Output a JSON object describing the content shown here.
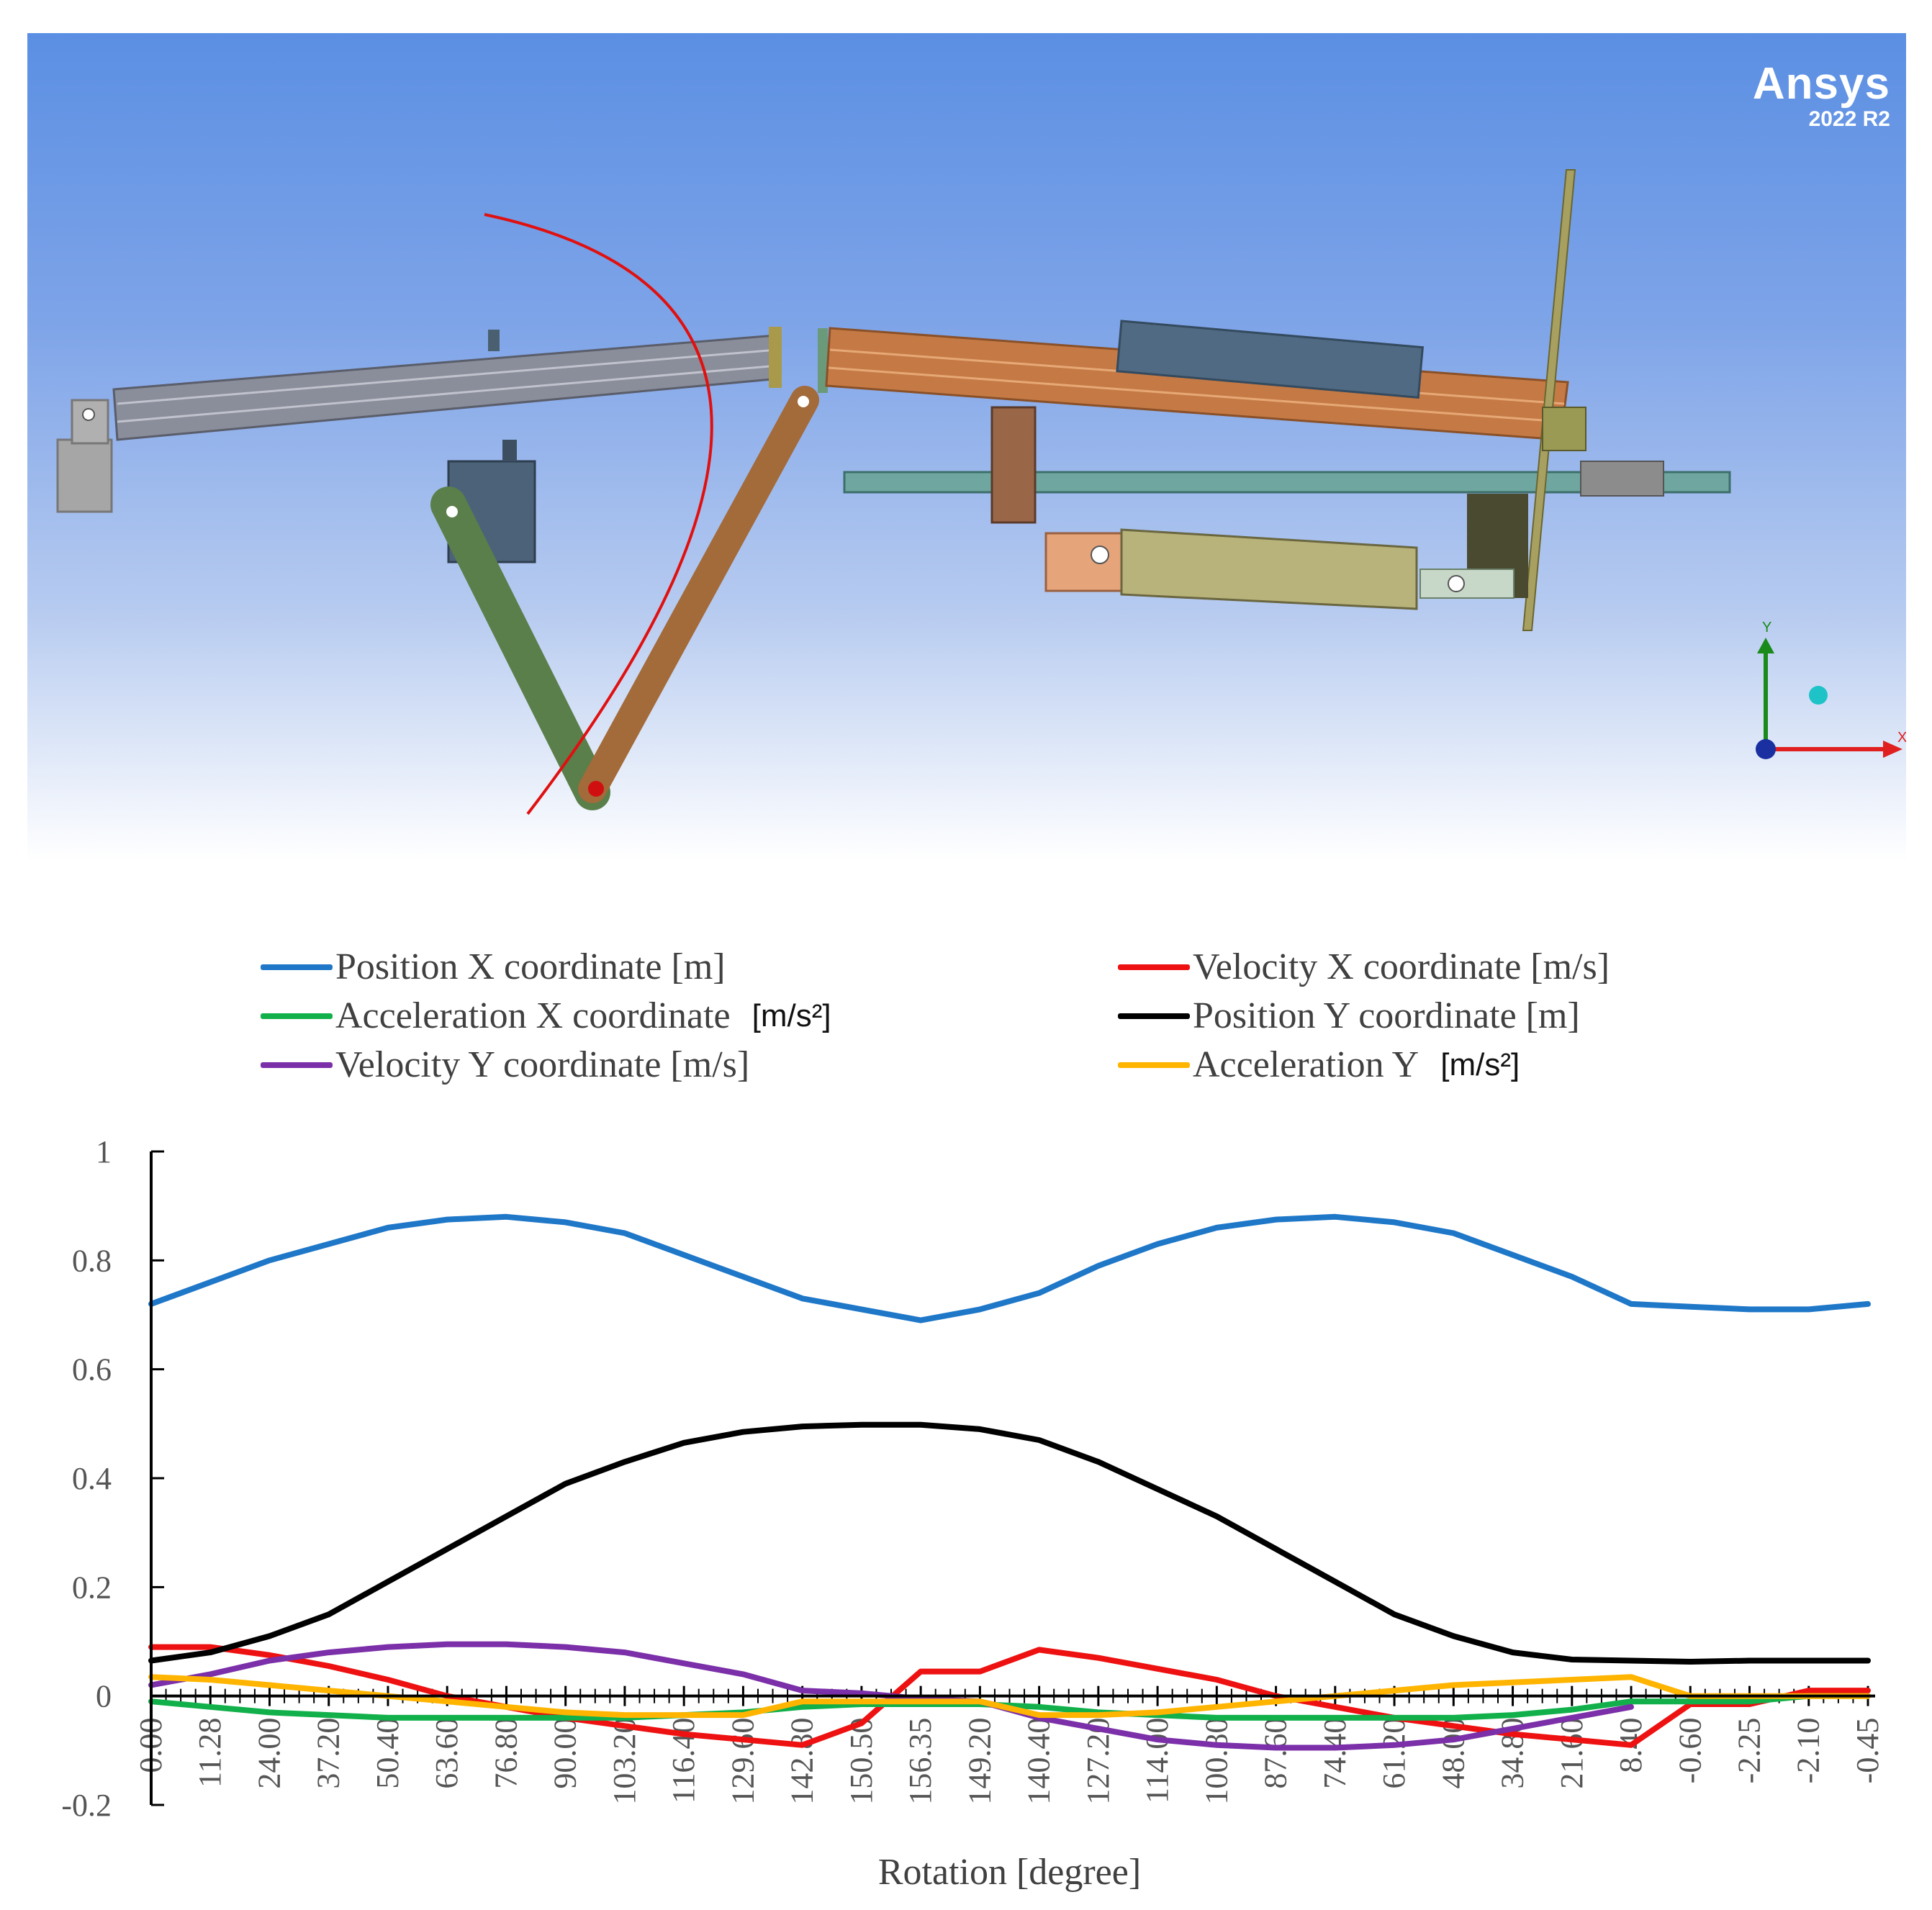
{
  "brand": {
    "name": "Ansys",
    "version": "2022 R2"
  },
  "triad": {
    "x_label": "X",
    "y_label": "Y"
  },
  "legend": [
    {
      "label": "Position X coordinate [m]",
      "unit": "",
      "color": "#1f77c8"
    },
    {
      "label": "Velocity X coordinate [m/s]",
      "unit": "",
      "color": "#ee1111"
    },
    {
      "label": "Acceleration X coordinate",
      "unit": "[m/s²]",
      "color": "#11b04a"
    },
    {
      "label": "Position Y coordinate [m]",
      "unit": "",
      "color": "#000000"
    },
    {
      "label": "Velocity Y coordinate [m/s]",
      "unit": "",
      "color": "#7b2fa8"
    },
    {
      "label": "Acceleration Y",
      "unit": "[m/s²]",
      "color": "#ffb400"
    }
  ],
  "chart_data": {
    "type": "line",
    "xlabel": "Rotation [degree]",
    "ylabel": "",
    "ylim": [
      -0.2,
      1
    ],
    "yticks": [
      "1",
      "0.8",
      "0.6",
      "0.4",
      "0.2",
      "0",
      "-0.2"
    ],
    "categories": [
      "0.00",
      "11.28",
      "24.00",
      "37.20",
      "50.40",
      "63.60",
      "76.80",
      "90.00",
      "103.20",
      "116.40",
      "129.60",
      "142.80",
      "150.50",
      "156.35",
      "149.20",
      "140.40",
      "127.20",
      "114.00",
      "100.80",
      "87.60",
      "74.40",
      "61.20",
      "48.00",
      "34.80",
      "21.60",
      "8.40",
      "-0.60",
      "-2.25",
      "-2.10",
      "-0.45"
    ],
    "series": [
      {
        "name": "Position X coordinate [m]",
        "color": "#1f77c8",
        "values": [
          0.72,
          0.76,
          0.8,
          0.83,
          0.86,
          0.875,
          0.88,
          0.87,
          0.85,
          0.81,
          0.77,
          0.73,
          0.71,
          0.69,
          0.71,
          0.74,
          0.79,
          0.83,
          0.86,
          0.875,
          0.88,
          0.87,
          0.85,
          0.81,
          0.77,
          0.72,
          0.715,
          0.71,
          0.71,
          0.72
        ]
      },
      {
        "name": "Velocity X coordinate [m/s]",
        "color": "#ee1111",
        "values": [
          0.09,
          0.09,
          0.075,
          0.055,
          0.03,
          0.0,
          -0.02,
          -0.04,
          -0.055,
          -0.07,
          -0.08,
          -0.09,
          -0.05,
          0.045,
          0.045,
          0.085,
          0.07,
          0.05,
          0.03,
          0.0,
          -0.02,
          -0.04,
          -0.055,
          -0.07,
          -0.08,
          -0.09,
          -0.015,
          -0.015,
          0.01,
          0.01
        ]
      },
      {
        "name": "Acceleration X coordinate",
        "color": "#11b04a",
        "values": [
          -0.01,
          -0.02,
          -0.03,
          -0.035,
          -0.04,
          -0.04,
          -0.04,
          -0.04,
          -0.04,
          -0.035,
          -0.03,
          -0.02,
          -0.015,
          -0.015,
          -0.015,
          -0.02,
          -0.03,
          -0.035,
          -0.04,
          -0.04,
          -0.04,
          -0.04,
          -0.04,
          -0.035,
          -0.025,
          -0.01,
          -0.01,
          -0.01,
          0.0,
          0.0
        ]
      },
      {
        "name": "Position Y coordinate [m]",
        "color": "#000000",
        "values": [
          0.065,
          0.08,
          0.11,
          0.15,
          0.21,
          0.27,
          0.33,
          0.39,
          0.43,
          0.465,
          0.485,
          0.495,
          0.498,
          0.498,
          0.49,
          0.47,
          0.43,
          0.38,
          0.33,
          0.27,
          0.21,
          0.15,
          0.11,
          0.08,
          0.067,
          0.065,
          0.063,
          0.065,
          0.065,
          0.065
        ]
      },
      {
        "name": "Velocity Y coordinate [m/s]",
        "color": "#7b2fa8",
        "values": [
          0.02,
          0.04,
          0.065,
          0.08,
          0.09,
          0.095,
          0.095,
          0.09,
          0.08,
          0.06,
          0.04,
          0.01,
          0.005,
          -0.005,
          -0.01,
          -0.04,
          -0.06,
          -0.08,
          -0.09,
          -0.095,
          -0.095,
          -0.09,
          -0.08,
          -0.06,
          -0.04,
          -0.02,
          null,
          null,
          null,
          null
        ]
      },
      {
        "name": "Acceleration Y",
        "color": "#ffb400",
        "values": [
          0.035,
          0.03,
          0.02,
          0.01,
          0.0,
          -0.01,
          -0.02,
          -0.03,
          -0.035,
          -0.035,
          -0.035,
          -0.01,
          -0.01,
          -0.01,
          -0.01,
          -0.035,
          -0.035,
          -0.03,
          -0.02,
          -0.01,
          0.0,
          0.01,
          0.02,
          0.025,
          0.03,
          0.035,
          0.0,
          0.0,
          0.0,
          0.0
        ]
      }
    ]
  }
}
